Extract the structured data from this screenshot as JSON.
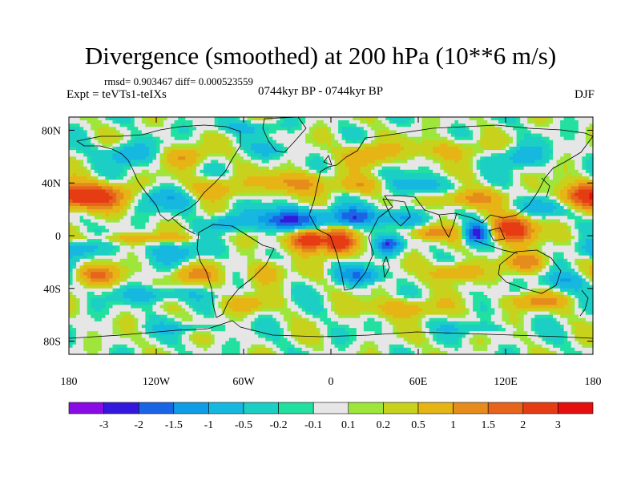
{
  "chart_data": {
    "type": "heatmap",
    "title": "Divergence (smoothed) at 200 hPa (10**6 m/s)",
    "stats": "rmsd= 0.903467 diff= 0.000523559",
    "experiment": "Expt = teVTs1-teIXs",
    "period": "0744kyr BP - 0744kyr BP",
    "season": "DJF",
    "x_range": [
      -180,
      180
    ],
    "y_range": [
      -90,
      90
    ],
    "x_ticks": [
      {
        "value": -180,
        "label": "180"
      },
      {
        "value": -120,
        "label": "120W"
      },
      {
        "value": -60,
        "label": "60W"
      },
      {
        "value": 0,
        "label": "0"
      },
      {
        "value": 60,
        "label": "60E"
      },
      {
        "value": 120,
        "label": "120E"
      },
      {
        "value": 180,
        "label": "180"
      }
    ],
    "y_ticks": [
      {
        "value": 80,
        "label": "80N"
      },
      {
        "value": 40,
        "label": "40N"
      },
      {
        "value": 0,
        "label": "0"
      },
      {
        "value": -40,
        "label": "40S"
      },
      {
        "value": -80,
        "label": "80S"
      }
    ],
    "levels": [
      -3,
      -2,
      -1.5,
      -1,
      -0.5,
      -0.2,
      -0.1,
      0.1,
      0.2,
      0.5,
      1,
      1.5,
      2,
      3
    ],
    "level_labels": [
      "-3",
      "-2",
      "-1.5",
      "-1",
      "-0.5",
      "-0.2",
      "-0.1",
      "0.1",
      "0.2",
      "0.5",
      "1",
      "1.5",
      "2",
      "3"
    ],
    "colors": [
      "#8a0be6",
      "#3418dd",
      "#1a64e6",
      "#0f9ee6",
      "#16b8e0",
      "#1ccfc5",
      "#22e0a0",
      "#e6e6e6",
      "#9ee63c",
      "#c8d21c",
      "#e6b414",
      "#e68c1c",
      "#e6641c",
      "#e63c14",
      "#e60f0f"
    ],
    "features": [
      {
        "lon": -160,
        "lat": 30,
        "amp": 2.2,
        "slon": 22,
        "slat": 9
      },
      {
        "lon": 175,
        "lat": 30,
        "amp": 2.0,
        "slon": 20,
        "slat": 9
      },
      {
        "lon": -115,
        "lat": 28,
        "amp": -0.8,
        "slon": 25,
        "slat": 8
      },
      {
        "lon": -80,
        "lat": 36,
        "amp": 0.9,
        "slon": 20,
        "slat": 8
      },
      {
        "lon": -25,
        "lat": 40,
        "amp": 1.3,
        "slon": 20,
        "slat": 8
      },
      {
        "lon": 20,
        "lat": 38,
        "amp": 0.8,
        "slon": 20,
        "slat": 6
      },
      {
        "lon": 60,
        "lat": 38,
        "amp": -0.9,
        "slon": 20,
        "slat": 7
      },
      {
        "lon": 95,
        "lat": 28,
        "amp": 1.2,
        "slon": 22,
        "slat": 7
      },
      {
        "lon": 145,
        "lat": 22,
        "amp": -0.8,
        "slon": 20,
        "slat": 8
      },
      {
        "lon": -30,
        "lat": 12,
        "amp": -2.3,
        "slon": 20,
        "slat": 8
      },
      {
        "lon": -70,
        "lat": 10,
        "amp": -1.0,
        "slon": 12,
        "slat": 6
      },
      {
        "lon": 15,
        "lat": 14,
        "amp": -1.8,
        "slon": 18,
        "slat": 7
      },
      {
        "lon": 50,
        "lat": 14,
        "amp": -1.0,
        "slon": 14,
        "slat": 6
      },
      {
        "lon": 70,
        "lat": 2,
        "amp": 1.3,
        "slon": 15,
        "slat": 5
      },
      {
        "lon": -15,
        "lat": -3,
        "amp": 3.0,
        "slon": 12,
        "slat": 8
      },
      {
        "lon": 5,
        "lat": -5,
        "amp": 2.5,
        "slon": 10,
        "slat": 9
      },
      {
        "lon": 40,
        "lat": -7,
        "amp": -1.9,
        "slon": 8,
        "slat": 6
      },
      {
        "lon": 100,
        "lat": 2,
        "amp": -2.4,
        "slon": 8,
        "slat": 8
      },
      {
        "lon": 125,
        "lat": 5,
        "amp": 2.8,
        "slon": 14,
        "slat": 10
      },
      {
        "lon": -130,
        "lat": -2,
        "amp": 0.7,
        "slon": 40,
        "slat": 4
      },
      {
        "lon": -175,
        "lat": -10,
        "amp": -1.0,
        "slon": 15,
        "slat": 7
      },
      {
        "lon": -105,
        "lat": -12,
        "amp": -0.8,
        "slon": 20,
        "slat": 8
      },
      {
        "lon": -160,
        "lat": -30,
        "amp": 1.5,
        "slon": 15,
        "slat": 7
      },
      {
        "lon": -95,
        "lat": -30,
        "amp": 1.2,
        "slon": 15,
        "slat": 7
      },
      {
        "lon": -45,
        "lat": -28,
        "amp": 1.0,
        "slon": 12,
        "slat": 8
      },
      {
        "lon": 20,
        "lat": -30,
        "amp": -1.4,
        "slon": 15,
        "slat": 6
      },
      {
        "lon": 85,
        "lat": -28,
        "amp": 1.3,
        "slon": 15,
        "slat": 7
      },
      {
        "lon": 135,
        "lat": -20,
        "amp": 1.4,
        "slon": 14,
        "slat": 7
      },
      {
        "lon": 160,
        "lat": -35,
        "amp": -0.9,
        "slon": 15,
        "slat": 7
      },
      {
        "lon": -120,
        "lat": -45,
        "amp": -0.8,
        "slon": 25,
        "slat": 6
      },
      {
        "lon": -60,
        "lat": -52,
        "amp": 0.8,
        "slon": 15,
        "slat": 6
      },
      {
        "lon": 50,
        "lat": -55,
        "amp": 0.9,
        "slon": 25,
        "slat": 7
      },
      {
        "lon": 140,
        "lat": -50,
        "amp": 1.1,
        "slon": 20,
        "slat": 6
      },
      {
        "lon": -100,
        "lat": -70,
        "amp": -0.5,
        "slon": 25,
        "slat": 4
      },
      {
        "lon": 100,
        "lat": -70,
        "amp": -0.5,
        "slon": 25,
        "slat": 4
      },
      {
        "lon": -100,
        "lat": 60,
        "amp": 0.9,
        "slon": 15,
        "slat": 8
      },
      {
        "lon": -140,
        "lat": 62,
        "amp": -1.0,
        "slon": 15,
        "slat": 8
      },
      {
        "lon": -40,
        "lat": 65,
        "amp": -0.6,
        "slon": 12,
        "slat": 6
      },
      {
        "lon": 25,
        "lat": 62,
        "amp": 1.2,
        "slon": 15,
        "slat": 8
      },
      {
        "lon": 80,
        "lat": 65,
        "amp": 0.7,
        "slon": 25,
        "slat": 8
      },
      {
        "lon": 130,
        "lat": 60,
        "amp": -0.8,
        "slon": 18,
        "slat": 8
      },
      {
        "lon": -60,
        "lat": 82,
        "amp": -0.5,
        "slon": 25,
        "slat": 5
      }
    ]
  }
}
